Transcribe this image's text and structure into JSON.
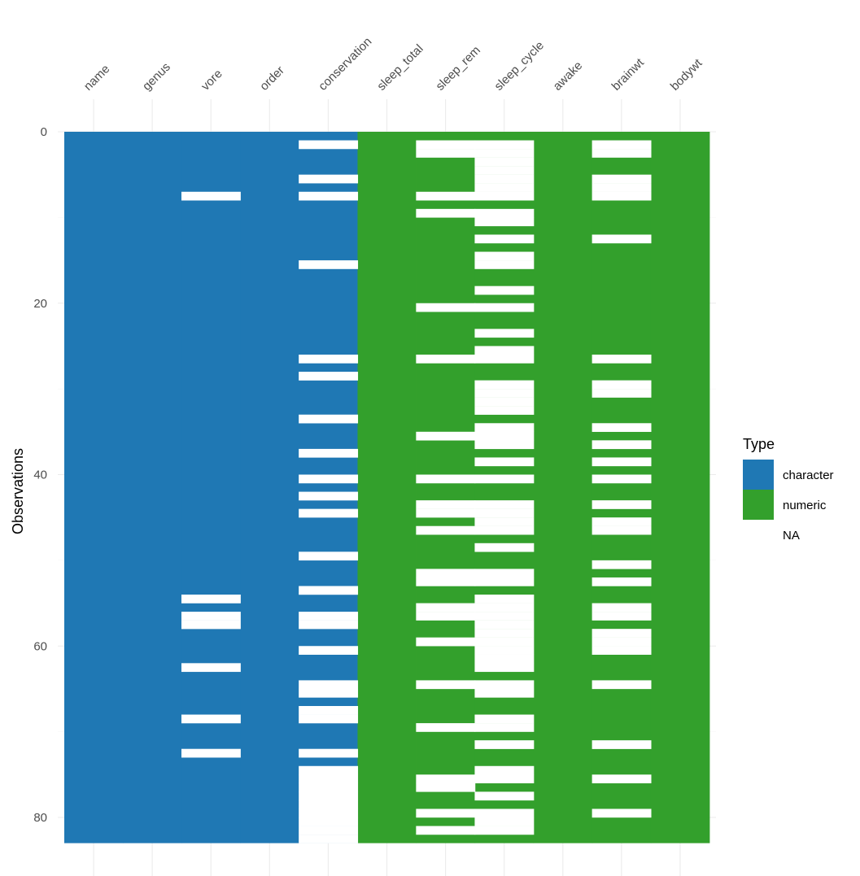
{
  "chart_data": {
    "type": "heatmap",
    "title": "",
    "xlabel": "",
    "ylabel": "Observations",
    "ylim": [
      0,
      83
    ],
    "y_ticks": [
      0,
      20,
      40,
      60,
      80
    ],
    "n_rows": 83,
    "columns": [
      "name",
      "genus",
      "vore",
      "order",
      "conservation",
      "sleep_total",
      "sleep_rem",
      "sleep_cycle",
      "awake",
      "brainwt",
      "bodywt"
    ],
    "column_types": [
      "character",
      "character",
      "character",
      "character",
      "character",
      "numeric",
      "numeric",
      "numeric",
      "numeric",
      "numeric",
      "numeric"
    ],
    "missing_rows": {
      "name": [],
      "genus": [],
      "vore": [
        8,
        55,
        57,
        58,
        63,
        69,
        73
      ],
      "order": [],
      "conservation": [
        2,
        6,
        8,
        16,
        27,
        29,
        34,
        38,
        41,
        43,
        45,
        50,
        54,
        57,
        58,
        61,
        65,
        66,
        68,
        69,
        73,
        75,
        76,
        77,
        78,
        79,
        80,
        81,
        82,
        83
      ],
      "sleep_total": [],
      "sleep_rem": [
        2,
        3,
        8,
        10,
        21,
        27,
        36,
        41,
        44,
        45,
        47,
        52,
        53,
        56,
        57,
        60,
        65,
        70,
        76,
        77,
        80,
        82
      ],
      "sleep_cycle": [
        2,
        3,
        4,
        5,
        6,
        7,
        8,
        10,
        11,
        13,
        15,
        16,
        19,
        21,
        24,
        26,
        27,
        30,
        31,
        32,
        33,
        35,
        36,
        37,
        39,
        41,
        44,
        45,
        46,
        47,
        49,
        52,
        53,
        55,
        56,
        57,
        58,
        59,
        60,
        61,
        62,
        63,
        65,
        66,
        69,
        70,
        72,
        75,
        76,
        78,
        80,
        81,
        82
      ],
      "awake": [],
      "brainwt": [
        2,
        3,
        6,
        7,
        8,
        13,
        27,
        30,
        31,
        35,
        37,
        39,
        41,
        44,
        46,
        47,
        51,
        53,
        56,
        57,
        59,
        60,
        61,
        65,
        72,
        76,
        80
      ],
      "bodywt": []
    },
    "legend": {
      "title": "Type",
      "position": "right",
      "entries": [
        {
          "label": "character",
          "color": "#1f78b4"
        },
        {
          "label": "numeric",
          "color": "#33a02c"
        },
        {
          "label": "NA",
          "color": "#ffffff"
        }
      ]
    }
  }
}
